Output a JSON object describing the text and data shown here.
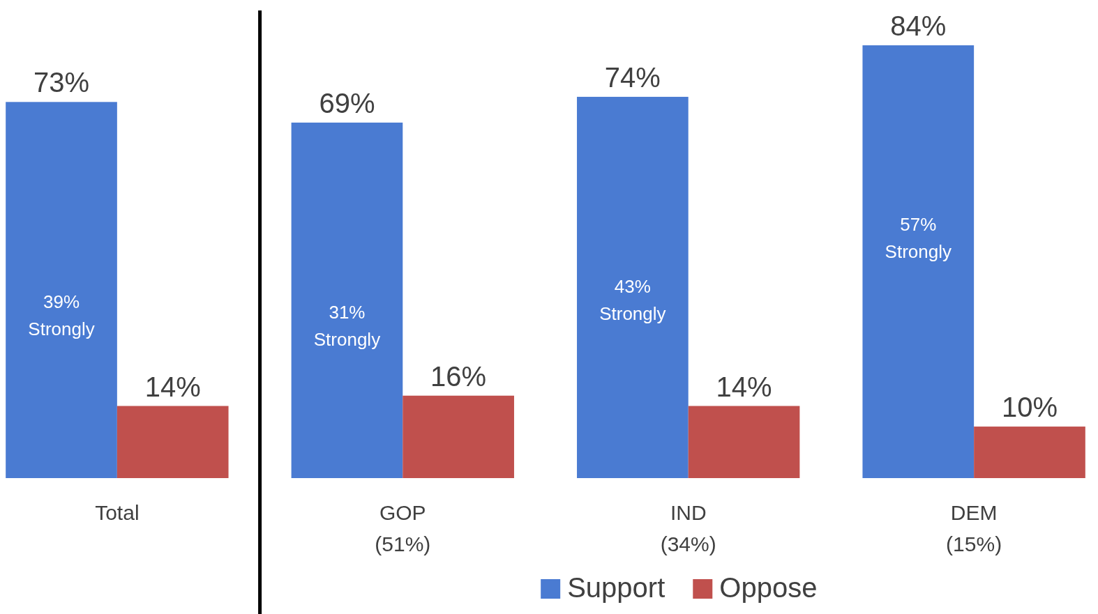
{
  "chart_data": {
    "type": "bar",
    "categories": [
      "Total",
      "GOP\n(51%)",
      "IND\n(34%)",
      "DEM\n(15%)"
    ],
    "series": [
      {
        "name": "Support",
        "color": "#4a7bd2",
        "values": [
          73,
          69,
          74,
          84
        ],
        "value_labels": [
          "73%",
          "69%",
          "74%",
          "84%"
        ]
      },
      {
        "name": "Oppose",
        "color": "#c0504d",
        "values": [
          14,
          16,
          14,
          10
        ],
        "value_labels": [
          "14%",
          "16%",
          "14%",
          "10%"
        ]
      }
    ],
    "tick_labels": "x",
    "legend": "bottom",
    "grid": false,
    "annotations": [
      {
        "text": "39%\nStrongly",
        "x": "Total",
        "y": 33
      },
      {
        "text": "31%\nStrongly",
        "x": "GOP\n(51%)",
        "y": 31
      },
      {
        "text": "43%\nStrongly",
        "x": "IND\n(34%)",
        "y": 36
      },
      {
        "text": "57%\nStrongly",
        "x": "DEM\n(15%)",
        "y": 48
      }
    ]
  }
}
